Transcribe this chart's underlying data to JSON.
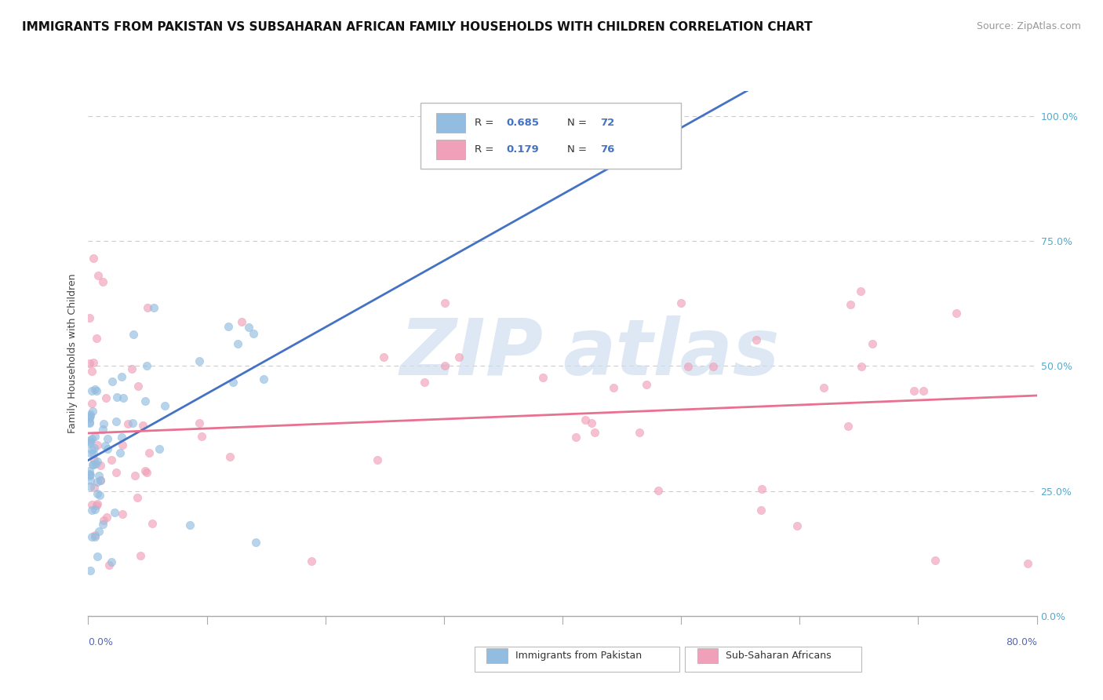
{
  "title": "IMMIGRANTS FROM PAKISTAN VS SUBSAHARAN AFRICAN FAMILY HOUSEHOLDS WITH CHILDREN CORRELATION CHART",
  "source": "Source: ZipAtlas.com",
  "ylabel": "Family Households with Children",
  "right_yticks": [
    0.0,
    0.25,
    0.5,
    0.75,
    1.0
  ],
  "right_yticklabels": [
    "0.0%",
    "25.0%",
    "50.0%",
    "75.0%",
    "100.0%"
  ],
  "series1_color": "#93bde0",
  "series2_color": "#f0a0b8",
  "line1_color": "#4472c4",
  "line2_color": "#e87090",
  "background_color": "#ffffff",
  "grid_color": "#cccccc",
  "title_fontsize": 11,
  "source_fontsize": 9,
  "legend_r_color": "#4472c4",
  "legend_n_color": "#4472c4",
  "r1": "0.685",
  "n1": "72",
  "r2": "0.179",
  "n2": "76",
  "xmin": 0.0,
  "xmax": 0.8,
  "ymin": 0.0,
  "ymax": 1.05,
  "watermark_color": "#d0dff0",
  "bottom_legend_label1": "Immigrants from Pakistan",
  "bottom_legend_label2": "Sub-Saharan Africans"
}
